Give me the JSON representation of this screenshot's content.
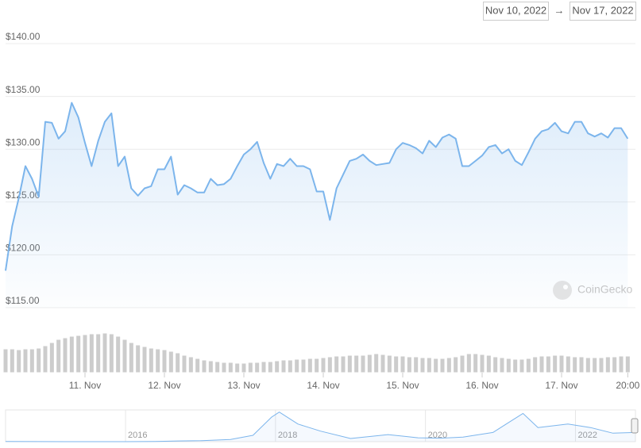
{
  "header": {
    "date_from": "Nov 10, 2022",
    "separator": "→",
    "date_to": "Nov 17, 2022"
  },
  "watermark": "CoinGecko",
  "chart_data": [
    {
      "type": "line",
      "color": "#7cb5ec",
      "volume_color": "#cccccc",
      "x": [
        "2022-11-10T00:00",
        "2022-11-10T02:00",
        "2022-11-10T04:00",
        "2022-11-10T06:00",
        "2022-11-10T08:00",
        "2022-11-10T10:00",
        "2022-11-10T12:00",
        "2022-11-10T14:00",
        "2022-11-10T16:00",
        "2022-11-10T18:00",
        "2022-11-10T20:00",
        "2022-11-10T22:00",
        "2022-11-11T00:00",
        "2022-11-11T02:00",
        "2022-11-11T04:00",
        "2022-11-11T06:00",
        "2022-11-11T08:00",
        "2022-11-11T10:00",
        "2022-11-11T12:00",
        "2022-11-11T14:00",
        "2022-11-11T16:00",
        "2022-11-11T18:00",
        "2022-11-11T20:00",
        "2022-11-11T22:00",
        "2022-11-12T00:00",
        "2022-11-12T02:00",
        "2022-11-12T04:00",
        "2022-11-12T06:00",
        "2022-11-12T08:00",
        "2022-11-12T10:00",
        "2022-11-12T12:00",
        "2022-11-12T14:00",
        "2022-11-12T16:00",
        "2022-11-12T18:00",
        "2022-11-12T20:00",
        "2022-11-12T22:00",
        "2022-11-13T00:00",
        "2022-11-13T02:00",
        "2022-11-13T04:00",
        "2022-11-13T06:00",
        "2022-11-13T08:00",
        "2022-11-13T10:00",
        "2022-11-13T12:00",
        "2022-11-13T14:00",
        "2022-11-13T16:00",
        "2022-11-13T18:00",
        "2022-11-13T20:00",
        "2022-11-13T22:00",
        "2022-11-14T00:00",
        "2022-11-14T02:00",
        "2022-11-14T04:00",
        "2022-11-14T06:00",
        "2022-11-14T08:00",
        "2022-11-14T10:00",
        "2022-11-14T12:00",
        "2022-11-14T14:00",
        "2022-11-14T16:00",
        "2022-11-14T18:00",
        "2022-11-14T20:00",
        "2022-11-14T22:00",
        "2022-11-15T00:00",
        "2022-11-15T02:00",
        "2022-11-15T04:00",
        "2022-11-15T06:00",
        "2022-11-15T08:00",
        "2022-11-15T10:00",
        "2022-11-15T12:00",
        "2022-11-15T14:00",
        "2022-11-15T16:00",
        "2022-11-15T18:00",
        "2022-11-15T20:00",
        "2022-11-15T22:00",
        "2022-11-16T00:00",
        "2022-11-16T02:00",
        "2022-11-16T04:00",
        "2022-11-16T06:00",
        "2022-11-16T08:00",
        "2022-11-16T10:00",
        "2022-11-16T12:00",
        "2022-11-16T14:00",
        "2022-11-16T16:00",
        "2022-11-16T18:00",
        "2022-11-16T20:00",
        "2022-11-16T22:00",
        "2022-11-17T00:00",
        "2022-11-17T02:00",
        "2022-11-17T04:00",
        "2022-11-17T06:00",
        "2022-11-17T08:00",
        "2022-11-17T10:00",
        "2022-11-17T12:00",
        "2022-11-17T14:00",
        "2022-11-17T16:00",
        "2022-11-17T18:00",
        "2022-11-17T20:00"
      ],
      "values": [
        118.5,
        122.7,
        125.4,
        128.4,
        127.2,
        125.5,
        132.6,
        132.5,
        131,
        131.7,
        134.4,
        133,
        130.6,
        128.4,
        130.8,
        132.6,
        133.4,
        128.4,
        129.3,
        126.3,
        125.6,
        126.3,
        126.5,
        128.1,
        128.1,
        129.3,
        125.7,
        126.6,
        126.3,
        125.9,
        125.9,
        127.2,
        126.6,
        126.7,
        127.2,
        128.4,
        129.5,
        130,
        130.7,
        128.7,
        127.2,
        128.6,
        128.4,
        129.1,
        128.4,
        128.4,
        128.1,
        126,
        126,
        123.3,
        126.3,
        127.6,
        128.9,
        129.1,
        129.5,
        128.9,
        128.5,
        128.6,
        128.7,
        130,
        130.6,
        130.4,
        130.1,
        129.6,
        130.8,
        130.2,
        131.1,
        131.4,
        131,
        128.4,
        128.4,
        128.9,
        129.4,
        130.2,
        130.4,
        129.6,
        130,
        128.9,
        128.5,
        129.7,
        131,
        131.7,
        131.9,
        132.5,
        131.7,
        131.5,
        132.6,
        132.6,
        131.5,
        131.2,
        131.5,
        131.1,
        132,
        132,
        131
      ],
      "volumes": [
        30,
        30,
        29,
        30,
        30,
        31,
        34,
        38,
        42,
        44,
        46,
        47,
        48,
        49,
        49,
        50,
        49,
        46,
        42,
        38,
        35,
        33,
        31,
        30,
        29,
        27,
        25,
        22,
        20,
        18,
        16,
        15,
        14,
        13,
        13,
        12,
        12,
        13,
        13,
        14,
        14,
        15,
        16,
        16,
        17,
        17,
        18,
        18,
        19,
        20,
        21,
        21,
        22,
        22,
        22,
        23,
        24,
        23,
        22,
        21,
        21,
        20,
        20,
        19,
        19,
        18,
        18,
        19,
        20,
        22,
        24,
        24,
        23,
        22,
        20,
        19,
        18,
        17,
        17,
        18,
        20,
        21,
        21,
        22,
        22,
        21,
        20,
        20,
        19,
        19,
        19,
        20,
        20,
        21,
        21
      ],
      "volume_ylim": [
        0,
        60
      ],
      "xlim": [
        "2022-11-10T00:00",
        "2022-11-17T21:36"
      ],
      "xticks": [
        {
          "value": "2022-11-11T00:00",
          "label": "11. Nov"
        },
        {
          "value": "2022-11-12T00:00",
          "label": "12. Nov"
        },
        {
          "value": "2022-11-13T00:00",
          "label": "13. Nov"
        },
        {
          "value": "2022-11-14T00:00",
          "label": "14. Nov"
        },
        {
          "value": "2022-11-15T00:00",
          "label": "15. Nov"
        },
        {
          "value": "2022-11-16T00:00",
          "label": "16. Nov"
        },
        {
          "value": "2022-11-17T00:00",
          "label": "17. Nov"
        },
        {
          "value": "2022-11-17T20:00",
          "label": "20:00"
        }
      ],
      "ylim": [
        115,
        140
      ],
      "yticks": [
        {
          "value": 115,
          "label": "$115.00"
        },
        {
          "value": 120,
          "label": "$120.00"
        },
        {
          "value": 125,
          "label": "$125.00"
        },
        {
          "value": 130,
          "label": "$130.00"
        },
        {
          "value": 135,
          "label": "$135.00"
        },
        {
          "value": 140,
          "label": "$140.00"
        }
      ],
      "grid": true
    },
    {
      "type": "line",
      "color": "#7cb5ec",
      "x": [
        2014.4,
        2014.8,
        2015.2,
        2015.6,
        2016.0,
        2016.4,
        2016.7,
        2017.0,
        2017.4,
        2017.7,
        2017.95,
        2018.05,
        2018.3,
        2018.6,
        2019.0,
        2019.5,
        2019.9,
        2020.2,
        2020.5,
        2020.9,
        2021.3,
        2021.5,
        2021.9,
        2022.2,
        2022.5,
        2022.8
      ],
      "values": [
        2,
        1,
        0.5,
        0.5,
        0.5,
        2,
        10,
        13,
        30,
        90,
        350,
        420,
        250,
        150,
        45,
        100,
        55,
        50,
        65,
        130,
        400,
        200,
        250,
        200,
        120,
        130
      ],
      "xlim": [
        2014.4,
        2022.8
      ],
      "ylim": [
        0,
        450
      ],
      "xticks": [
        2016,
        2018,
        2020,
        2022
      ]
    }
  ]
}
